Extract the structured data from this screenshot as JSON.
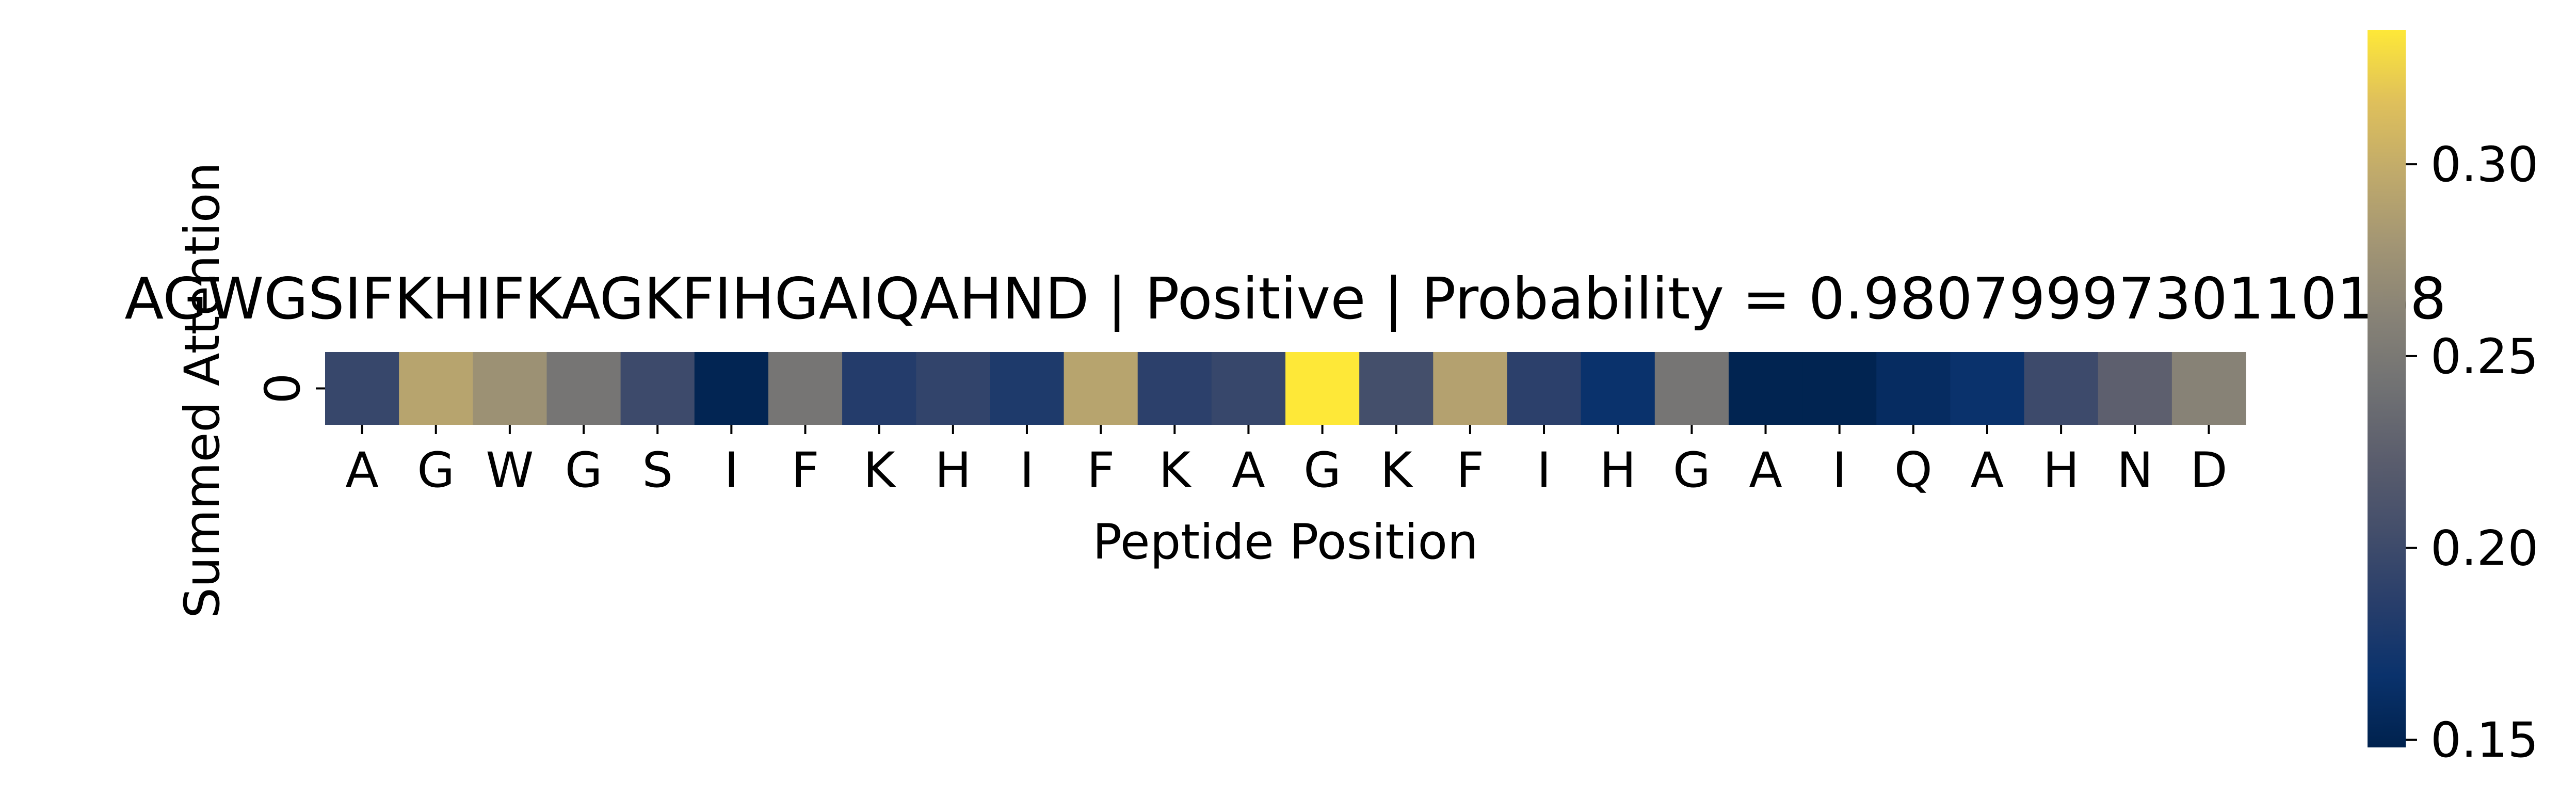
{
  "chart_data": {
    "type": "heatmap",
    "title": "AGWGSIFKHIFKAGKFIHGAIQAHND | Positive | Probability = 0.9807999730110168",
    "xlabel": "Peptide Position",
    "ylabel": "Summed Attention",
    "x_categories": [
      "A",
      "G",
      "W",
      "G",
      "S",
      "I",
      "F",
      "K",
      "H",
      "I",
      "F",
      "K",
      "A",
      "G",
      "K",
      "F",
      "I",
      "H",
      "G",
      "A",
      "I",
      "Q",
      "A",
      "H",
      "N",
      "D"
    ],
    "y_categories": [
      "0"
    ],
    "values": [
      [
        0.196,
        0.292,
        0.275,
        0.246,
        0.2,
        0.151,
        0.246,
        0.183,
        0.192,
        0.179,
        0.292,
        0.188,
        0.196,
        0.335,
        0.205,
        0.29,
        0.188,
        0.167,
        0.246,
        0.15,
        0.15,
        0.16,
        0.167,
        0.2,
        0.225,
        0.26
      ]
    ],
    "colorbar": {
      "colormap": "cividis",
      "vmin": 0.148,
      "vmax": 0.335,
      "ticks": [
        0.15,
        0.2,
        0.25,
        0.3
      ],
      "tick_labels": [
        "0.15",
        "0.20",
        "0.25",
        "0.30"
      ]
    },
    "grid": false,
    "legend": "none"
  }
}
